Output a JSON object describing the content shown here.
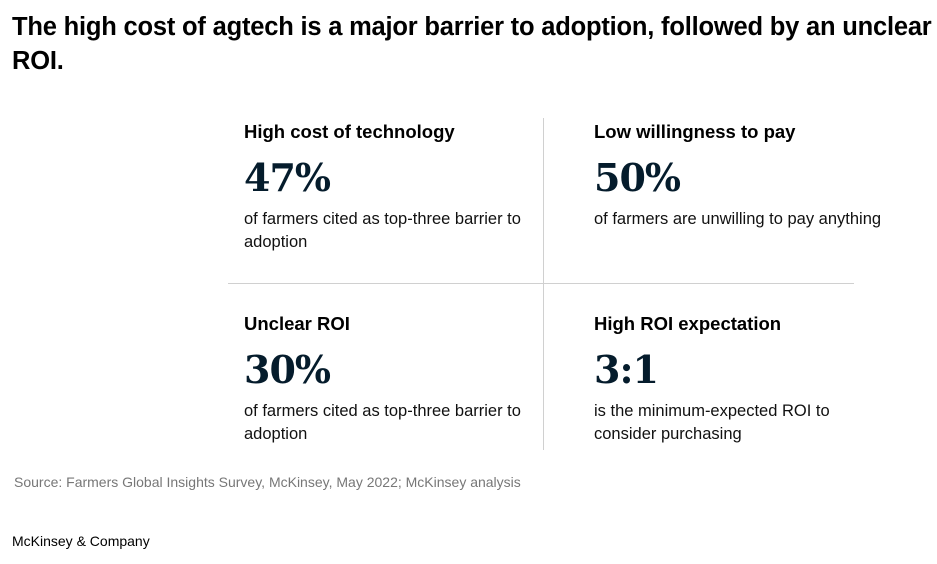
{
  "title": "The high cost of agtech is a major barrier to adoption, followed by an unclear ROI.",
  "cells": [
    {
      "heading": "High cost of technology",
      "value": "47%",
      "description": "of farmers cited as top-three barrier to adoption"
    },
    {
      "heading": "Low willingness to pay",
      "value": "50%",
      "description": "of farmers are unwilling to pay anything"
    },
    {
      "heading": "Unclear ROI",
      "value": "30%",
      "description": "of farmers cited as top-three barrier to adoption"
    },
    {
      "heading": "High ROI expectation",
      "value": "3:1",
      "description": "is the minimum-expected ROI to consider purchasing"
    }
  ],
  "source": "Source: Farmers Global Insights Survey, McKinsey, May 2022; McKinsey analysis",
  "brand": "McKinsey & Company",
  "colors": {
    "number": "#051c2c",
    "divider": "#d0d0d0",
    "source": "#777777"
  }
}
